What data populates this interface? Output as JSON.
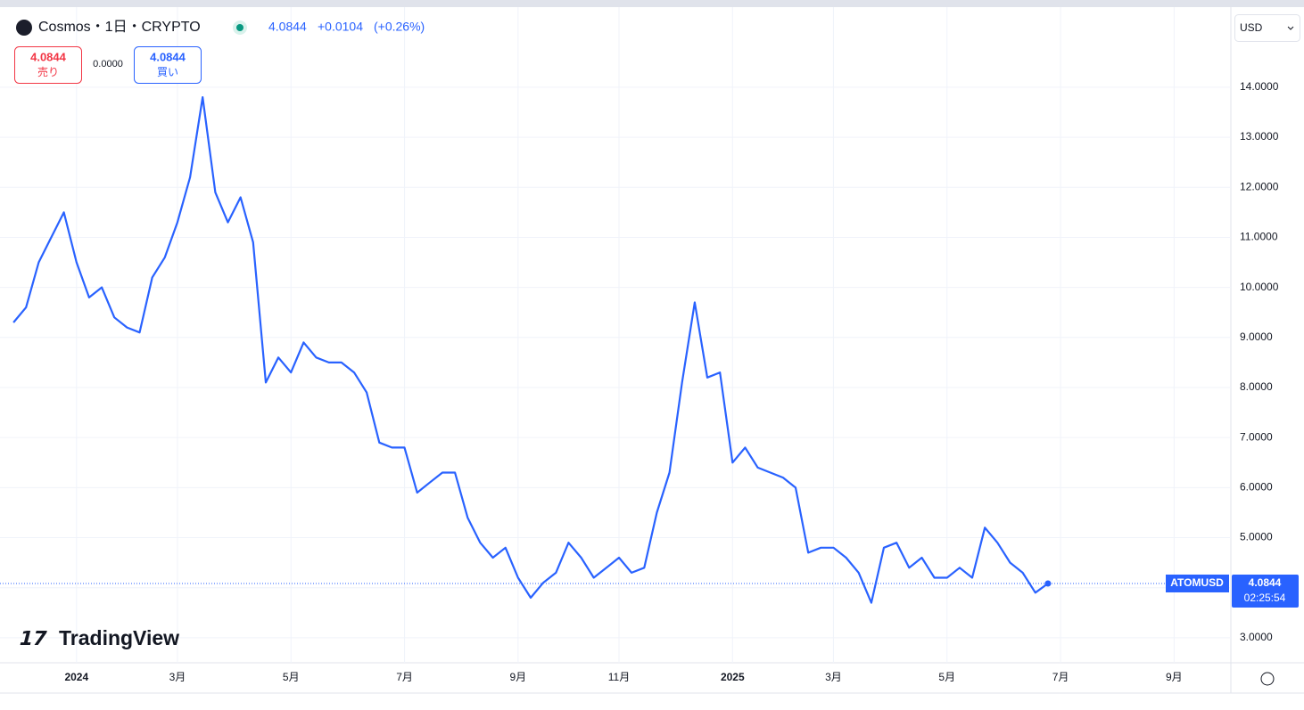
{
  "header": {
    "symbol": "Cosmos・1日・CRYPTO",
    "last": "4.0844",
    "change": "+0.0104",
    "change_pct": "(+0.26%)",
    "sell_price": "4.0844",
    "sell_label": "売り",
    "spread": "0.0000",
    "buy_price": "4.0844",
    "buy_label": "買い",
    "currency": "USD",
    "logo": "TradingView"
  },
  "chart_data": {
    "type": "line",
    "series": [
      {
        "name": "ATOMUSD",
        "color": "#2962ff",
        "values": [
          9.3,
          9.6,
          10.5,
          11.0,
          11.5,
          10.5,
          9.8,
          10.0,
          9.4,
          9.2,
          9.1,
          10.2,
          10.6,
          11.3,
          12.2,
          13.8,
          11.9,
          11.3,
          11.8,
          10.9,
          8.1,
          8.6,
          8.3,
          8.9,
          8.6,
          8.5,
          8.5,
          8.3,
          7.9,
          6.9,
          6.8,
          6.8,
          5.9,
          6.1,
          6.3,
          6.3,
          5.4,
          4.9,
          4.6,
          4.8,
          4.2,
          3.8,
          4.1,
          4.3,
          4.9,
          4.6,
          4.2,
          4.4,
          4.6,
          4.3,
          4.4,
          5.5,
          6.3,
          8.1,
          9.7,
          8.2,
          8.3,
          6.5,
          6.8,
          6.4,
          6.3,
          6.2,
          6.0,
          4.7,
          4.8,
          4.8,
          4.6,
          4.3,
          3.7,
          4.8,
          4.9,
          4.4,
          4.6,
          4.2,
          4.2,
          4.4,
          4.2,
          5.2,
          4.9,
          4.5,
          4.3,
          3.9,
          4.0844,
          null,
          null,
          null,
          null,
          null,
          null,
          null,
          null,
          null,
          null,
          null,
          null,
          null,
          null
        ]
      }
    ],
    "categories": [
      null,
      null,
      null,
      null,
      null,
      "2024",
      null,
      null,
      null,
      null,
      null,
      null,
      null,
      "3月",
      null,
      null,
      null,
      null,
      null,
      null,
      null,
      null,
      "5月",
      null,
      null,
      null,
      null,
      null,
      null,
      null,
      null,
      "7月",
      null,
      null,
      null,
      null,
      null,
      null,
      null,
      null,
      "9月",
      null,
      null,
      null,
      null,
      null,
      null,
      null,
      "11月",
      null,
      null,
      null,
      null,
      null,
      null,
      null,
      null,
      "2025",
      null,
      null,
      null,
      null,
      null,
      null,
      null,
      "3月",
      null,
      null,
      null,
      null,
      null,
      null,
      null,
      null,
      "5月",
      null,
      null,
      null,
      null,
      null,
      null,
      null,
      null,
      "7月",
      null,
      null,
      null,
      null,
      null,
      null,
      null,
      null,
      "9月",
      null,
      null,
      null,
      null
    ],
    "ylim": [
      2.5,
      15.6
    ],
    "yticks": [
      {
        "value": 3,
        "label": "3.0000"
      },
      {
        "value": 4,
        "label": "4.0000"
      },
      {
        "value": 5,
        "label": "5.0000"
      },
      {
        "value": 6,
        "label": "6.0000"
      },
      {
        "value": 7,
        "label": "7.0000"
      },
      {
        "value": 8,
        "label": "8.0000"
      },
      {
        "value": 9,
        "label": "9.0000"
      },
      {
        "value": 10,
        "label": "10.0000"
      },
      {
        "value": 11,
        "label": "11.0000"
      },
      {
        "value": 12,
        "label": "12.0000"
      },
      {
        "value": 13,
        "label": "13.0000"
      },
      {
        "value": 14,
        "label": "14.0000"
      }
    ],
    "grid": true,
    "last_price": 4.0844,
    "countdown": "02:25:54"
  }
}
